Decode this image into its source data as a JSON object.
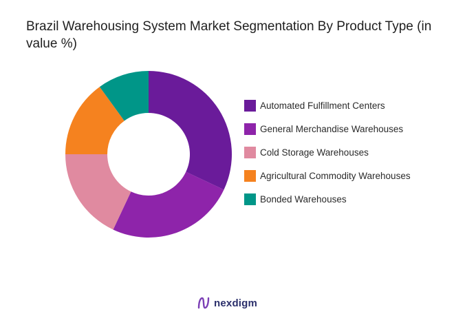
{
  "colors": {
    "accent": "#6a1b9a",
    "brand": "#2b2f6b"
  },
  "brand": {
    "name": "nexdigm",
    "icon": "nexdigm-logo-icon"
  },
  "chart_data": {
    "type": "pie",
    "variant": "donut",
    "title": "Brazil Warehousing System Market Segmentation By Product Type (in value %)",
    "legend_position": "right",
    "categories": [
      "Automated Fulfillment Centers",
      "General Merchandise Warehouses",
      "Cold Storage Warehouses",
      "Agricultural Commodity Warehouses",
      "Bonded Warehouses"
    ],
    "values": [
      32,
      25,
      18,
      15,
      10
    ],
    "colors": [
      "#6a1b9a",
      "#8e24aa",
      "#e08aa0",
      "#f5821f",
      "#009688"
    ]
  }
}
